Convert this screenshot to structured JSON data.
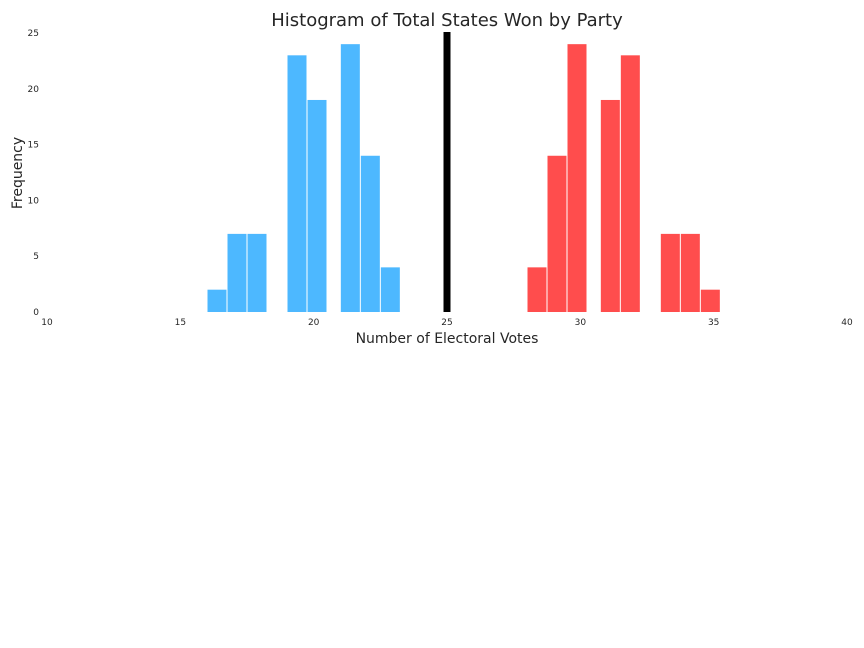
{
  "chart_data": {
    "type": "bar",
    "title": "Histogram of Total States Won by Party",
    "xlabel": "Number of Electoral Votes",
    "ylabel": "Frequency",
    "xlim": [
      10,
      40
    ],
    "ylim": [
      0,
      25
    ],
    "xticks": [
      "10",
      "15",
      "20",
      "25",
      "30",
      "35",
      "40"
    ],
    "yticks": [
      "0",
      "5",
      "10",
      "15",
      "20",
      "25"
    ],
    "grid": false,
    "legend": "none",
    "threshold_line": {
      "x": 25,
      "color": "#000000"
    },
    "series": [
      {
        "color": "#4db8ff",
        "bins": [
          {
            "x0": 16,
            "x1": 16.75,
            "y": 2
          },
          {
            "x0": 16.75,
            "x1": 17.5,
            "y": 7
          },
          {
            "x0": 17.5,
            "x1": 18.25,
            "y": 7
          },
          {
            "x0": 19,
            "x1": 19.75,
            "y": 23
          },
          {
            "x0": 19.75,
            "x1": 20.5,
            "y": 19
          },
          {
            "x0": 21,
            "x1": 21.75,
            "y": 24
          },
          {
            "x0": 21.75,
            "x1": 22.5,
            "y": 14
          },
          {
            "x0": 22.5,
            "x1": 23.25,
            "y": 4
          }
        ]
      },
      {
        "color": "#ff4d4d",
        "bins": [
          {
            "x0": 28,
            "x1": 28.75,
            "y": 4
          },
          {
            "x0": 28.75,
            "x1": 29.5,
            "y": 14
          },
          {
            "x0": 29.5,
            "x1": 30.25,
            "y": 24
          },
          {
            "x0": 30.75,
            "x1": 31.5,
            "y": 19
          },
          {
            "x0": 31.5,
            "x1": 32.25,
            "y": 23
          },
          {
            "x0": 33,
            "x1": 33.75,
            "y": 7
          },
          {
            "x0": 33.75,
            "x1": 34.5,
            "y": 7
          },
          {
            "x0": 34.5,
            "x1": 35.25,
            "y": 2
          }
        ]
      }
    ]
  }
}
